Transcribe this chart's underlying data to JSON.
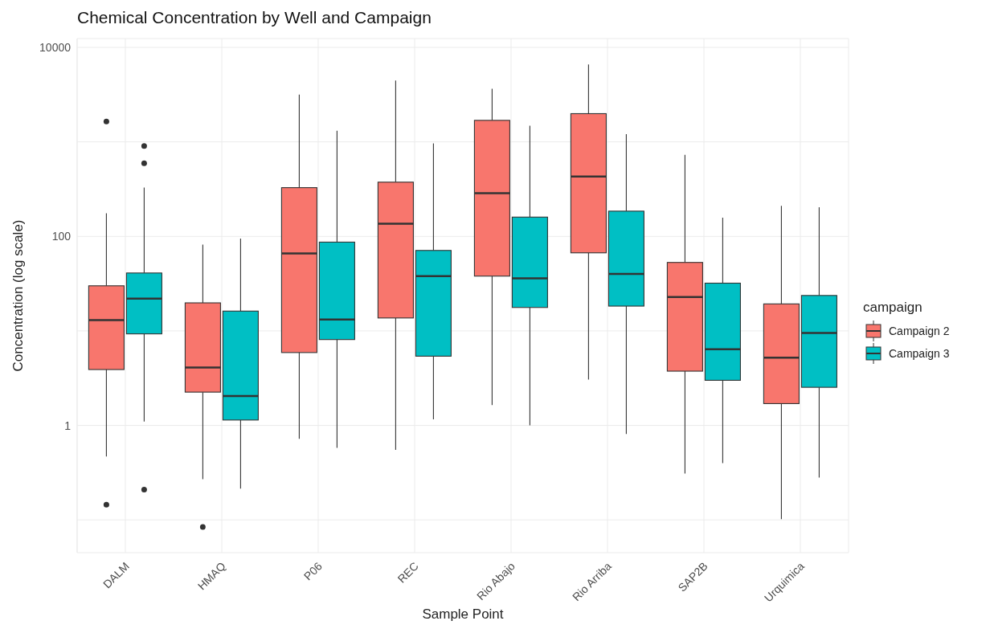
{
  "chart_data": {
    "type": "box",
    "title": "Chemical Concentration by Well and Campaign",
    "xlabel": "Sample Point",
    "ylabel": "Concentration (log scale)",
    "legend_title": "campaign",
    "categories": [
      "DALM",
      "HMAQ",
      "P06",
      "REC",
      "Rio Abajo",
      "Rio Arriba",
      "SAP2B",
      "Urquimica"
    ],
    "series": [
      {
        "name": "Campaign 2",
        "color": "#f8766d",
        "boxes": [
          {
            "low": 0.47,
            "q1": 3.9,
            "median": 13,
            "q3": 30,
            "high": 176,
            "outliers": [
              1640,
              0.145
            ]
          },
          {
            "low": 0.27,
            "q1": 2.25,
            "median": 4.1,
            "q3": 19.8,
            "high": 82,
            "outliers": [
              0.084
            ]
          },
          {
            "low": 0.72,
            "q1": 5.9,
            "median": 66,
            "q3": 328,
            "high": 3170
          },
          {
            "low": 0.55,
            "q1": 13.7,
            "median": 136,
            "q3": 375,
            "high": 4450
          },
          {
            "low": 1.64,
            "q1": 38,
            "median": 287,
            "q3": 1690,
            "high": 3650
          },
          {
            "low": 3.06,
            "q1": 67,
            "median": 429,
            "q3": 1990,
            "high": 6590
          },
          {
            "low": 0.31,
            "q1": 3.75,
            "median": 22.8,
            "q3": 53,
            "high": 728
          },
          {
            "low": 0.102,
            "q1": 1.7,
            "median": 5.2,
            "q3": 19.3,
            "high": 210
          }
        ]
      },
      {
        "name": "Campaign 3",
        "color": "#00bfc4",
        "boxes": [
          {
            "low": 1.1,
            "q1": 9.3,
            "median": 22,
            "q3": 41,
            "high": 328,
            "outliers": [
              906,
              593,
              0.209
            ]
          },
          {
            "low": 0.214,
            "q1": 1.14,
            "median": 2.05,
            "q3": 16.2,
            "high": 95
          },
          {
            "low": 0.58,
            "q1": 8.1,
            "median": 13.2,
            "q3": 87,
            "high": 1310
          },
          {
            "low": 1.16,
            "q1": 5.4,
            "median": 38,
            "q3": 71,
            "high": 966
          },
          {
            "low": 1.0,
            "q1": 17.7,
            "median": 36,
            "q3": 160,
            "high": 1480
          },
          {
            "low": 0.81,
            "q1": 18.3,
            "median": 40,
            "q3": 185,
            "high": 1210
          },
          {
            "low": 0.4,
            "q1": 3.0,
            "median": 6.4,
            "q3": 32,
            "high": 158
          },
          {
            "low": 0.28,
            "q1": 2.53,
            "median": 9.5,
            "q3": 23.7,
            "high": 203
          }
        ]
      }
    ],
    "log": true,
    "ylim": [
      0.045,
      12400
    ],
    "yticks": [
      {
        "value": 0.1,
        "label": null
      },
      1,
      {
        "value": 10,
        "label": null
      },
      100,
      {
        "value": 1000,
        "label": null
      },
      10000
    ],
    "grid": true,
    "legend": "right"
  }
}
